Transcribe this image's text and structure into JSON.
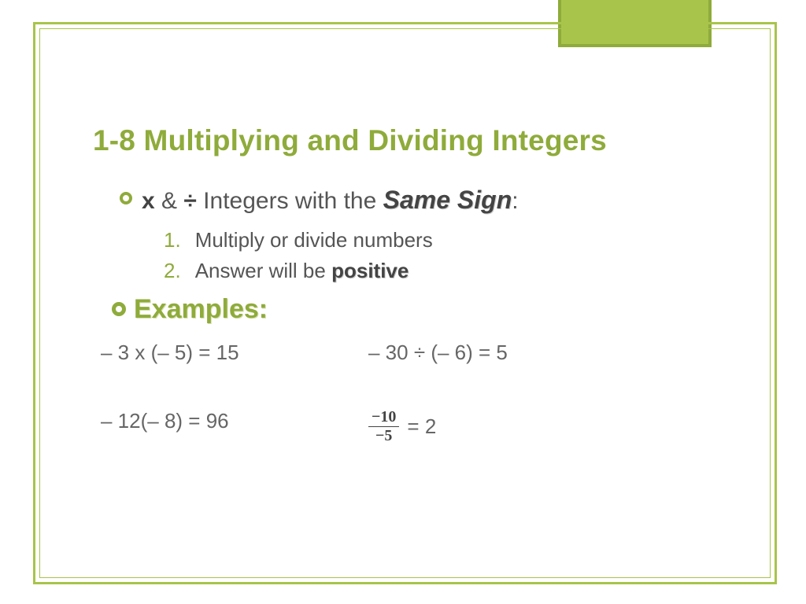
{
  "colors": {
    "accent_green": "#a8c44a",
    "accent_dark": "#8fab3b",
    "title_color": "#8fab3b",
    "text_color": "#555555",
    "background": "#ffffff"
  },
  "title": "1-8 Multiplying and Dividing Integers",
  "bullet1": {
    "prefix_bold": "x",
    "mid1": " & ",
    "div_bold": "÷",
    "mid2": " Integers with the ",
    "emph": "Same Sign",
    "suffix": ":"
  },
  "steps": {
    "n1": "1.",
    "s1": "Multiply or divide numbers",
    "n2": "2.",
    "s2_pre": "Answer will be ",
    "s2_bold": "positive"
  },
  "examples_label": "Examples:",
  "examples": {
    "e1": "– 3 x (– 5) = 15",
    "e2": "– 30 ÷ (– 6) = 5",
    "e3": "– 12(– 8) =  96",
    "e4_top": "−10",
    "e4_bot": "−5",
    "e4_eq": " = 2"
  }
}
